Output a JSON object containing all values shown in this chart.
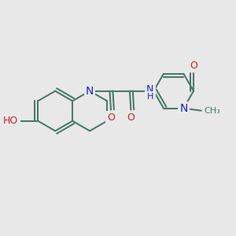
{
  "background_color": "#e8e8e8",
  "bond_color": "#4a7a6a",
  "atom_colors": {
    "N": "#2020cc",
    "O": "#cc2020",
    "H": "#4a7a6a",
    "C": "#4a7a6a"
  },
  "figsize": [
    3.0,
    3.0
  ],
  "dpi": 100
}
